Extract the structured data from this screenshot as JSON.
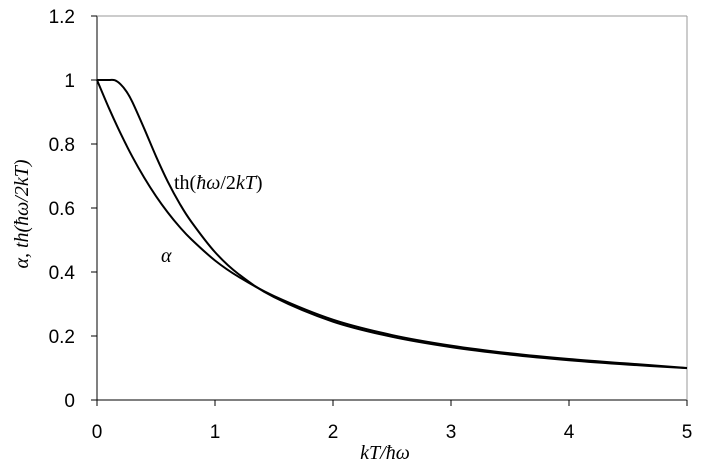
{
  "chart_data": {
    "type": "line",
    "xlim": [
      0,
      5
    ],
    "ylim": [
      0,
      1.2
    ],
    "grid": false,
    "legend": "none",
    "x_ticks": [
      "0",
      "1",
      "2",
      "3",
      "4",
      "5"
    ],
    "y_ticks": [
      "0",
      "0.2",
      "0.4",
      "0.6",
      "0.8",
      "1",
      "1.2"
    ],
    "xlabel": "kT/ħω",
    "ylabel": "α,  th(ħω/2kT)",
    "annotations": {
      "th_label_prefix": "th(",
      "th_label_hbar": "ħω",
      "th_label_mid": "/2",
      "th_label_kT": "kT",
      "th_label_suffix": ")",
      "alpha_label": "α"
    },
    "series": [
      {
        "name": "th(ħω/2kT)",
        "x": [
          0,
          0.1,
          0.15,
          0.2,
          0.25,
          0.3,
          0.4,
          0.5,
          0.6,
          0.7,
          0.8,
          1.0,
          1.2,
          1.5,
          2.0,
          2.5,
          3.0,
          3.5,
          4.0,
          4.5,
          5.0
        ],
        "y": [
          1.0,
          1.0,
          0.9993,
          0.9866,
          0.964,
          0.9311,
          0.8483,
          0.7616,
          0.6823,
          0.6142,
          0.5567,
          0.4621,
          0.3934,
          0.3215,
          0.2449,
          0.1974,
          0.1651,
          0.1419,
          0.1244,
          0.1107,
          0.0997
        ]
      },
      {
        "name": "α",
        "x": [
          0,
          0.1,
          0.2,
          0.3,
          0.4,
          0.5,
          0.6,
          0.7,
          0.8,
          1.0,
          1.2,
          1.5,
          2.0,
          2.5,
          3.0,
          3.5,
          4.0,
          4.5,
          5.0
        ],
        "y": [
          1.0,
          0.913,
          0.833,
          0.76,
          0.695,
          0.637,
          0.586,
          0.541,
          0.502,
          0.436,
          0.385,
          0.325,
          0.251,
          0.203,
          0.17,
          0.146,
          0.128,
          0.114,
          0.1
        ]
      }
    ]
  }
}
